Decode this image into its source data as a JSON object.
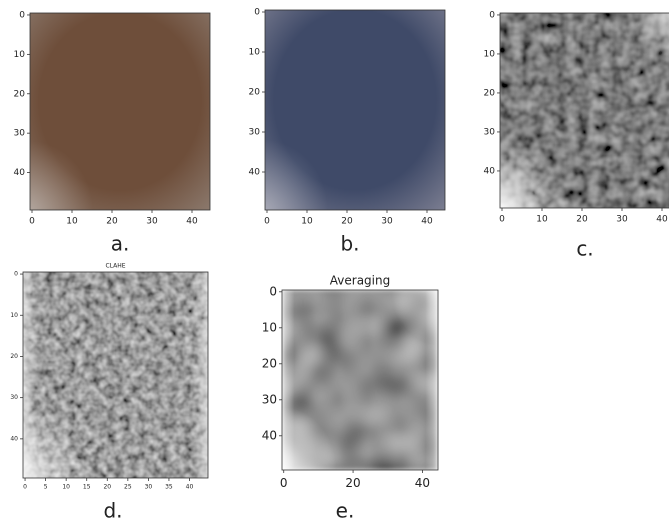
{
  "panels": [
    {
      "label": "a.",
      "xticks": [
        0,
        10,
        20,
        30,
        40
      ],
      "yticks": [
        0,
        10,
        20,
        30,
        40
      ]
    },
    {
      "label": "b.",
      "xticks": [
        0,
        10,
        20,
        30,
        40
      ],
      "yticks": [
        0,
        10,
        20,
        30,
        40
      ]
    },
    {
      "label": "c.",
      "xticks": [
        0,
        10,
        20,
        30,
        40
      ],
      "yticks": [
        0,
        10,
        20,
        30,
        40
      ]
    },
    {
      "label": "d.",
      "title": "CLAHE",
      "xticks": [
        0,
        5,
        10,
        15,
        20,
        25,
        30,
        35,
        40
      ],
      "yticks": [
        0,
        10,
        20,
        30,
        40
      ]
    },
    {
      "label": "e.",
      "title": "Averaging",
      "xticks": [
        0,
        20,
        40
      ],
      "yticks": [
        0,
        10,
        20,
        30,
        40
      ]
    }
  ]
}
